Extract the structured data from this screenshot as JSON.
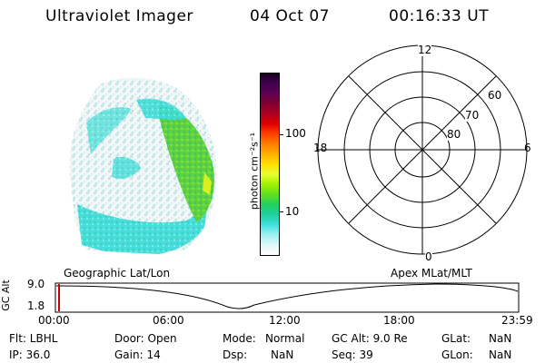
{
  "header": {
    "instrument": "Ultraviolet Imager",
    "date": "04 Oct 07",
    "time": "00:16:33 UT"
  },
  "image_panel": {
    "label": "Geographic Lat/Lon"
  },
  "colorbar": {
    "unit_label": "photon cm⁻²s⁻¹",
    "ticks": [
      "100",
      "10"
    ],
    "colors": [
      "#1a0020",
      "#400050",
      "#600050",
      "#800030",
      "#b00020",
      "#e00000",
      "#ff4000",
      "#ff8000",
      "#ffb000",
      "#ffe000",
      "#e8ff30",
      "#a0f000",
      "#60e020",
      "#20d060",
      "#20d0a0",
      "#40e0e0",
      "#a0f0f0",
      "#e0f8f8",
      "#ffffff"
    ]
  },
  "polar_plot": {
    "label": "Apex MLat/MLT",
    "mlt_labels": {
      "top": "12",
      "left": "18",
      "right": "6",
      "bottom": "0"
    },
    "lat_labels": [
      "60",
      "70",
      "80"
    ]
  },
  "timeline": {
    "ylabel": "GC Alt",
    "y_ticks": [
      "9.0",
      "1.8"
    ],
    "x_ticks": [
      "00:00",
      "06:00",
      "12:00",
      "18:00",
      "23:59"
    ],
    "marker_color": "#cc0000"
  },
  "info": {
    "flt": "Flt: LBHL",
    "ip": "IP: 36.0",
    "door": "Door: Open",
    "gain": "Gain: 14",
    "mode_label": "Mode:",
    "mode_value": "Normal",
    "dsp_label": "Dsp:",
    "dsp_value": "NaN",
    "gcalt": "GC Alt: 9.0 Re",
    "seq": "Seq: 39",
    "glat_label": "GLat:",
    "glat_value": "NaN",
    "glon_label": "GLon:",
    "glon_value": "NaN"
  }
}
